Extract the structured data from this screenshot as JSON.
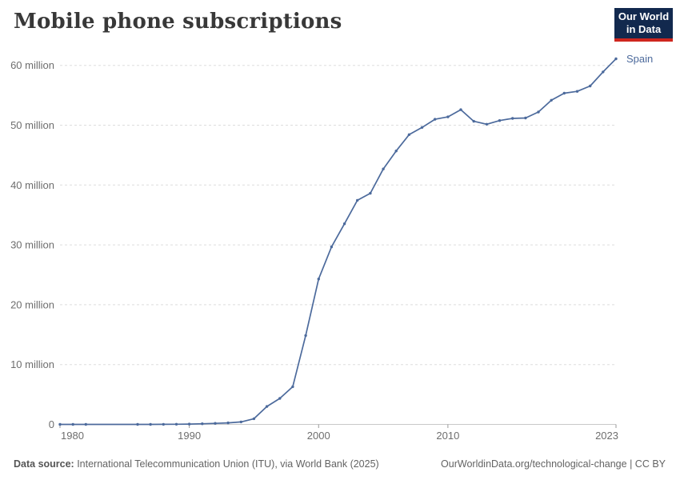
{
  "header": {
    "title": "Mobile phone subscriptions",
    "logo": {
      "line1": "Our World",
      "line2": "in Data"
    }
  },
  "colors": {
    "line": "#4C6A9C",
    "entity_label": "#4C6A9C",
    "grid": "#DDDDDD",
    "axis_line": "#C8C8C8",
    "tick_mark": "#999999",
    "tick_text": "#6E6E6E",
    "logo_bg": "#12294E",
    "logo_red": "#CE261E"
  },
  "chart_data": {
    "type": "line",
    "title": "Mobile phone subscriptions",
    "xlabel": "",
    "ylabel": "mobile phone subscriptions",
    "grid": "horizontal-dashed",
    "legend_position": "end-of-line-label",
    "xlim": [
      1980,
      2023
    ],
    "ylim_millions": [
      0,
      61.5
    ],
    "x_ticks": [
      1980,
      1990,
      2000,
      2010,
      2023
    ],
    "y_ticks": [
      {
        "value": 0,
        "label": "0"
      },
      {
        "value": 10,
        "label": "10 million"
      },
      {
        "value": 20,
        "label": "20 million"
      },
      {
        "value": 30,
        "label": "30 million"
      },
      {
        "value": 40,
        "label": "40 million"
      },
      {
        "value": 50,
        "label": "50 million"
      },
      {
        "value": 60,
        "label": "60 million"
      }
    ],
    "series": [
      {
        "name": "Spain",
        "x": [
          1980,
          1981,
          1982,
          1986,
          1987,
          1988,
          1989,
          1990,
          1991,
          1992,
          1993,
          1994,
          1995,
          1996,
          1997,
          1998,
          1999,
          2000,
          2001,
          2002,
          2003,
          2004,
          2005,
          2006,
          2007,
          2008,
          2009,
          2010,
          2011,
          2012,
          2013,
          2014,
          2015,
          2016,
          2017,
          2018,
          2019,
          2020,
          2021,
          2022,
          2023
        ],
        "values_millions": [
          0,
          0,
          0,
          0.002,
          0.004,
          0.011,
          0.03,
          0.055,
          0.108,
          0.18,
          0.257,
          0.412,
          0.945,
          3.0,
          4.34,
          6.3,
          14.85,
          24.3,
          29.66,
          33.53,
          37.45,
          38.62,
          42.69,
          45.7,
          48.42,
          49.62,
          50.99,
          51.39,
          52.6,
          50.66,
          50.16,
          50.77,
          51.14,
          51.2,
          52.2,
          54.17,
          55.35,
          55.65,
          56.55,
          58.9,
          61.1
        ]
      }
    ]
  },
  "footer": {
    "source_label": "Data source:",
    "source_text": " International Telecommunication Union (ITU), via World Bank (2025)",
    "link": "OurWorldinData.org/technological-change",
    "license": " | CC BY"
  }
}
